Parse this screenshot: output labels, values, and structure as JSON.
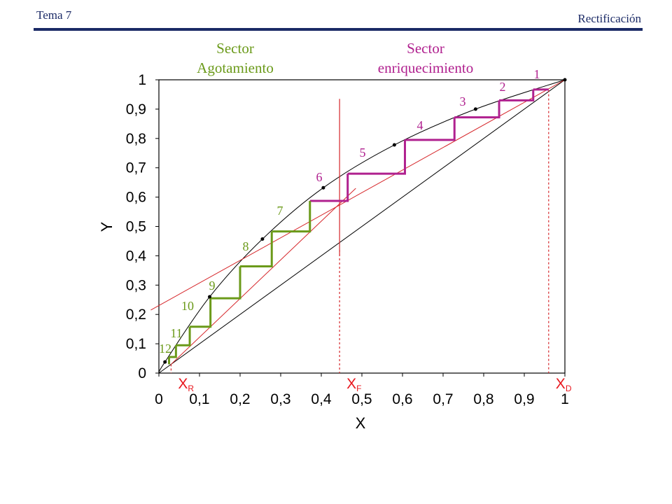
{
  "header": {
    "left_title": "Tema 7",
    "right_title": "Rectificación"
  },
  "chart_data": {
    "type": "line",
    "xlabel": "X",
    "ylabel": "Y",
    "xlim": [
      0,
      1
    ],
    "ylim": [
      0,
      1
    ],
    "x_tick_labels": [
      "0",
      "0,1",
      "0,2",
      "0,3",
      "0,4",
      "0,5",
      "0,6",
      "0,7",
      "0,8",
      "0,9",
      "1"
    ],
    "y_tick_labels": [
      "0",
      "0,1",
      "0,2",
      "0,3",
      "0,4",
      "0,5",
      "0,6",
      "0,7",
      "0,8",
      "0,9",
      "1"
    ],
    "sector_labels": {
      "stripping": [
        "Sector",
        "Agotamiento"
      ],
      "enriching": [
        "Sector",
        "enriquecimiento"
      ]
    },
    "composition_markers": [
      {
        "label": "X",
        "sub": "R",
        "x": 0.03
      },
      {
        "label": "X",
        "sub": "F",
        "x": 0.445
      },
      {
        "label": "X",
        "sub": "D",
        "x": 0.96
      }
    ],
    "colors": {
      "enriching": "#b0218f",
      "stripping": "#6b9a1a",
      "operating": "#d6262a",
      "curve": "#000000"
    },
    "equilibrium_points": [
      {
        "x": 0.015,
        "y": 0.038
      },
      {
        "x": 0.125,
        "y": 0.26
      },
      {
        "x": 0.255,
        "y": 0.457
      },
      {
        "x": 0.405,
        "y": 0.632
      },
      {
        "x": 0.58,
        "y": 0.778
      },
      {
        "x": 0.78,
        "y": 0.9
      },
      {
        "x": 1.0,
        "y": 1.0
      }
    ],
    "enriching_line": [
      [
        -0.02,
        0.215
      ],
      [
        1.0,
        1.0
      ]
    ],
    "stripping_line": [
      [
        0.03,
        0.03
      ],
      [
        0.485,
        0.63
      ]
    ],
    "feed_line_x": 0.445,
    "feed_line_y": [
      0.0,
      0.935
    ],
    "enriching_steps": [
      {
        "label": "1",
        "x_to": 0.922,
        "y": 0.967
      },
      {
        "label": "2",
        "x_to": 0.838,
        "y": 0.93
      },
      {
        "label": "3",
        "x_to": 0.728,
        "y": 0.872
      },
      {
        "label": "4",
        "x_to": 0.606,
        "y": 0.795
      },
      {
        "label": "5",
        "x_to": 0.465,
        "y": 0.68
      },
      {
        "label": "6",
        "x_to": 0.372,
        "y": 0.587
      }
    ],
    "stripping_steps": [
      {
        "label": "7",
        "x_to": 0.278,
        "y": 0.483
      },
      {
        "label": "8",
        "x_to": 0.2,
        "y": 0.364
      },
      {
        "label": "9",
        "x_to": 0.127,
        "y": 0.255
      },
      {
        "label": "10",
        "x_to": 0.076,
        "y": 0.158
      },
      {
        "label": "11",
        "x_to": 0.042,
        "y": 0.095
      },
      {
        "label": "12",
        "x_to": 0.025,
        "y": 0.055
      }
    ],
    "stripping_end_y": 0.03
  }
}
